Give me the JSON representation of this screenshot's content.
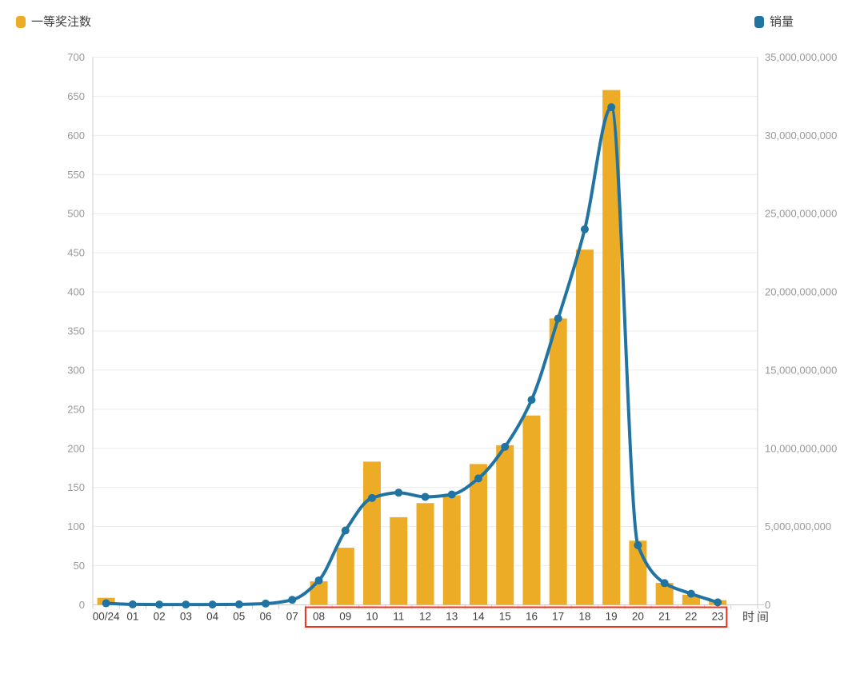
{
  "legend": {
    "bar": {
      "label": "一等奖注数"
    },
    "line": {
      "label": "销量"
    }
  },
  "chart_data": {
    "type": "combo-bar-line",
    "title": "",
    "categories": [
      "00/24",
      "01",
      "02",
      "03",
      "04",
      "05",
      "06",
      "07",
      "08",
      "09",
      "10",
      "11",
      "12",
      "13",
      "14",
      "15",
      "16",
      "17",
      "18",
      "19",
      "20",
      "21",
      "22",
      "23"
    ],
    "series": [
      {
        "name": "一等奖注数",
        "type": "bar",
        "y_axis": "left",
        "color": "#ECAC26",
        "values": [
          9,
          0,
          0,
          0,
          0,
          0,
          0,
          0,
          30,
          73,
          183,
          112,
          130,
          140,
          180,
          204,
          242,
          366,
          454,
          658,
          82,
          28,
          13,
          6
        ]
      },
      {
        "name": "销量",
        "type": "line",
        "y_axis": "right",
        "color": "#2174A2",
        "values": [
          100000000,
          30000000,
          20000000,
          20000000,
          20000000,
          30000000,
          80000000,
          320000000,
          1560000000,
          4750000000,
          6830000000,
          7170000000,
          6900000000,
          7050000000,
          8080000000,
          10100000000,
          13100000000,
          18300000000,
          24000000000,
          31800000000,
          3810000000,
          1390000000,
          710000000,
          160000000
        ]
      }
    ],
    "left_axis": {
      "min": 0,
      "max": 700,
      "step": 50,
      "label_color": "#999999"
    },
    "right_axis": {
      "min": 0,
      "max": 35000000000,
      "step": 5000000000,
      "label_color": "#999999"
    },
    "x_axis": {
      "name": "时间",
      "label_color": "#3d3d3d",
      "name_color": "#4a4a4a"
    },
    "highlight_box": {
      "from_category": "08",
      "to_category": "23",
      "color": "#F4301C"
    },
    "grid": true,
    "grid_color": "#ECECEC",
    "axis_line_color": "#CCCCCC",
    "legend_position": "top"
  }
}
